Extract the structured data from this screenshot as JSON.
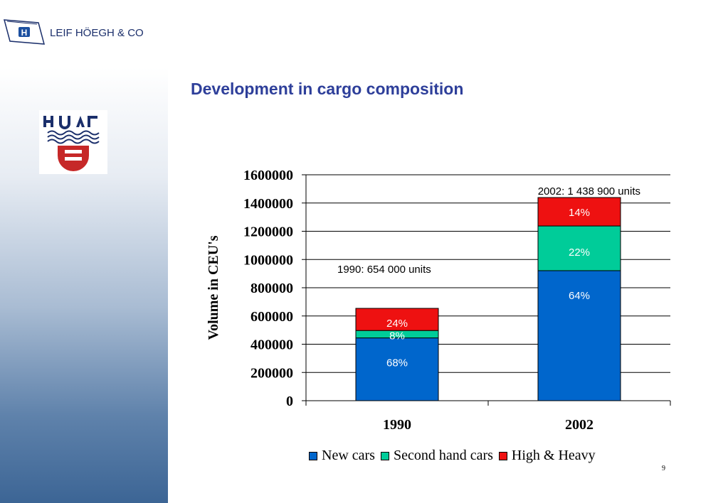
{
  "header": {
    "brand_name": "LEIF HÖEGH & CO"
  },
  "slide": {
    "title": "Development in cargo composition",
    "page_number": "9"
  },
  "colors": {
    "new_cars": "#0066cc",
    "second_hand_cars": "#00cc99",
    "high_heavy": "#ee1111",
    "title": "#2e3f9a"
  },
  "chart_data": {
    "type": "bar",
    "stacked": true,
    "categories": [
      "1990",
      "2002"
    ],
    "series": [
      {
        "name": "New cars",
        "values": [
          444720,
          920896
        ],
        "labels": [
          "68%",
          "64%"
        ]
      },
      {
        "name": "Second hand cars",
        "values": [
          52320,
          316558
        ],
        "labels": [
          "8%",
          "22%"
        ]
      },
      {
        "name": "High & Heavy",
        "values": [
          156960,
          201446
        ],
        "labels": [
          "24%",
          "14%"
        ]
      }
    ],
    "annotations": [
      "1990: 654 000 units",
      "2002: 1 438 900 units"
    ],
    "ylabel": "Volume in CEU's",
    "ylim": [
      0,
      1600000
    ],
    "yticks": [
      "0",
      "200000",
      "400000",
      "600000",
      "800000",
      "1000000",
      "1200000",
      "1400000",
      "1600000"
    ],
    "grid": true,
    "legend": "bottom"
  }
}
